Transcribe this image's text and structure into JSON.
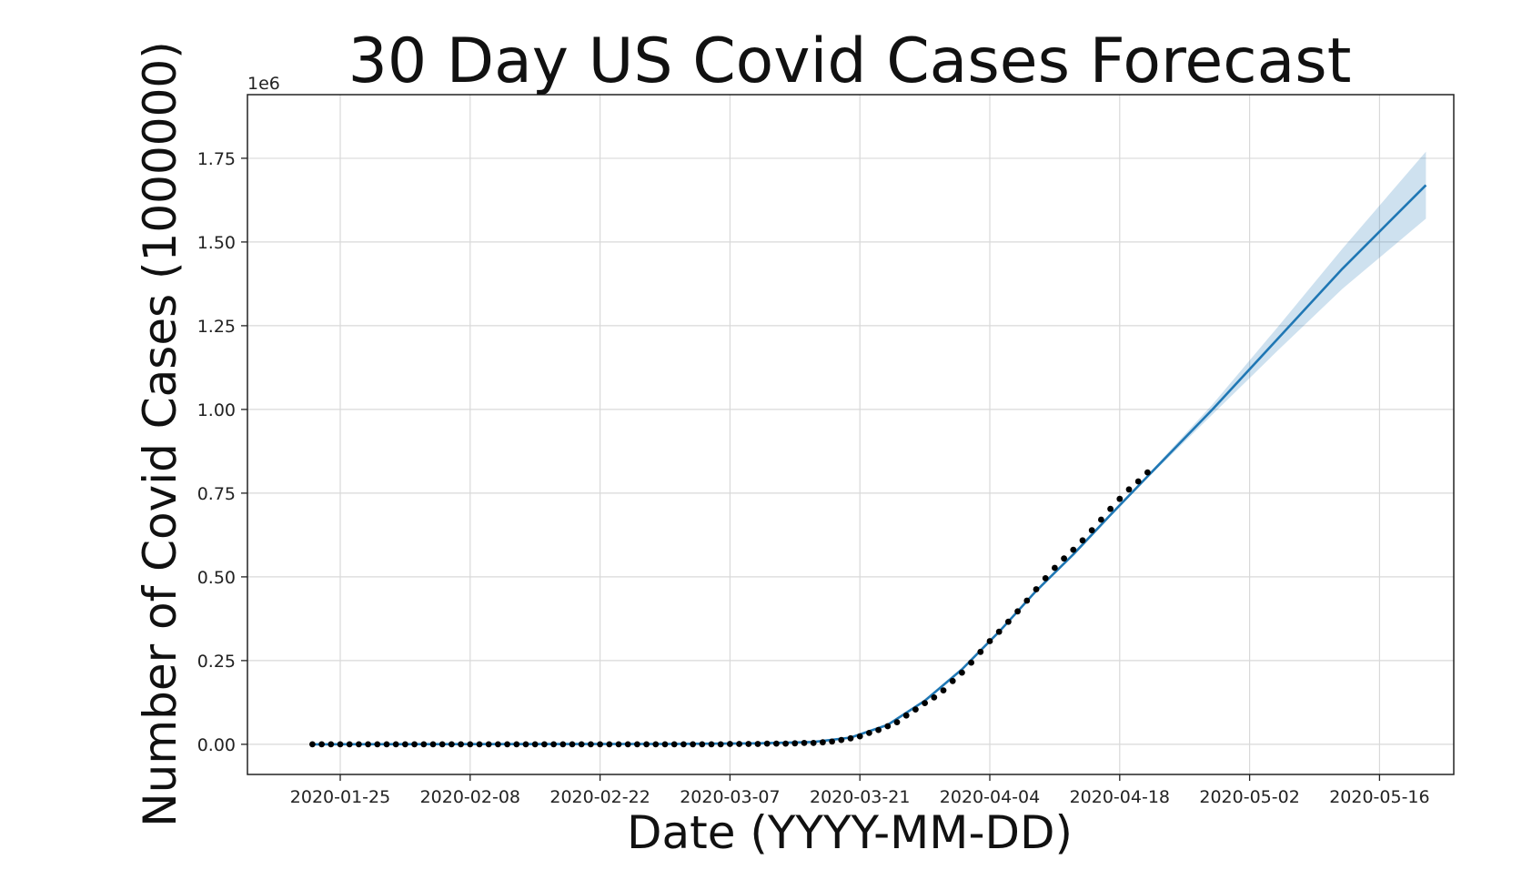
{
  "chart_data": {
    "type": "line",
    "title": "30 Day US Covid Cases Forecast",
    "xlabel": "Date (YYYY-MM-DD)",
    "ylabel": "Number of Covid Cases (1000000)",
    "y_offset_label": "1e6",
    "x_ticks": [
      "2020-01-25",
      "2020-02-08",
      "2020-02-22",
      "2020-03-07",
      "2020-03-21",
      "2020-04-04",
      "2020-04-18",
      "2020-05-02",
      "2020-05-16"
    ],
    "y_ticks": [
      "0.00",
      "0.25",
      "0.50",
      "0.75",
      "1.00",
      "1.25",
      "1.50",
      "1.75"
    ],
    "x_range": [
      "2020-01-15",
      "2020-05-24"
    ],
    "ylim": [
      -0.09,
      1.94
    ],
    "grid": true,
    "colors": {
      "forecast_line": "#1f77b4",
      "interval_band": "#1f77b4",
      "observed_points": "#000000"
    },
    "series": [
      {
        "kind": "observed_points",
        "x": [
          "2020-01-22",
          "2020-01-23",
          "2020-01-24",
          "2020-01-25",
          "2020-01-26",
          "2020-01-27",
          "2020-01-28",
          "2020-01-29",
          "2020-01-30",
          "2020-01-31",
          "2020-02-01",
          "2020-02-02",
          "2020-02-03",
          "2020-02-04",
          "2020-02-05",
          "2020-02-06",
          "2020-02-07",
          "2020-02-08",
          "2020-02-09",
          "2020-02-10",
          "2020-02-11",
          "2020-02-12",
          "2020-02-13",
          "2020-02-14",
          "2020-02-15",
          "2020-02-16",
          "2020-02-17",
          "2020-02-18",
          "2020-02-19",
          "2020-02-20",
          "2020-02-21",
          "2020-02-22",
          "2020-02-23",
          "2020-02-24",
          "2020-02-25",
          "2020-02-26",
          "2020-02-27",
          "2020-02-28",
          "2020-02-29",
          "2020-03-01",
          "2020-03-02",
          "2020-03-03",
          "2020-03-04",
          "2020-03-05",
          "2020-03-06",
          "2020-03-07",
          "2020-03-08",
          "2020-03-09",
          "2020-03-10",
          "2020-03-11",
          "2020-03-12",
          "2020-03-13",
          "2020-03-14",
          "2020-03-15",
          "2020-03-16",
          "2020-03-17",
          "2020-03-18",
          "2020-03-19",
          "2020-03-20",
          "2020-03-21",
          "2020-03-22",
          "2020-03-23",
          "2020-03-24",
          "2020-03-25",
          "2020-03-26",
          "2020-03-27",
          "2020-03-28",
          "2020-03-29",
          "2020-03-30",
          "2020-03-31",
          "2020-04-01",
          "2020-04-02",
          "2020-04-03",
          "2020-04-04",
          "2020-04-05",
          "2020-04-06",
          "2020-04-07",
          "2020-04-08",
          "2020-04-09",
          "2020-04-10",
          "2020-04-11",
          "2020-04-12",
          "2020-04-13",
          "2020-04-14",
          "2020-04-15",
          "2020-04-16",
          "2020-04-17",
          "2020-04-18",
          "2020-04-19",
          "2020-04-20",
          "2020-04-21"
        ],
        "y": [
          0,
          0,
          0,
          0,
          0,
          0,
          0,
          0,
          0,
          0,
          0,
          0,
          0,
          0,
          0,
          0,
          0,
          0,
          0,
          0,
          0,
          0,
          0,
          0,
          0,
          0,
          0,
          0,
          0,
          0,
          0,
          0,
          0,
          0,
          0,
          0,
          0,
          0,
          0,
          0,
          0,
          0,
          0,
          0,
          0,
          0.001,
          0.001,
          0.001,
          0.001,
          0.002,
          0.002,
          0.002,
          0.003,
          0.004,
          0.004,
          0.006,
          0.008,
          0.013,
          0.018,
          0.024,
          0.034,
          0.043,
          0.054,
          0.066,
          0.086,
          0.104,
          0.123,
          0.14,
          0.161,
          0.189,
          0.214,
          0.244,
          0.276,
          0.308,
          0.336,
          0.366,
          0.397,
          0.429,
          0.463,
          0.496,
          0.527,
          0.555,
          0.581,
          0.609,
          0.639,
          0.671,
          0.703,
          0.733,
          0.761,
          0.785,
          0.812
        ]
      },
      {
        "kind": "forecast_line",
        "x": [
          "2020-01-22",
          "2020-03-01",
          "2020-03-10",
          "2020-03-16",
          "2020-03-20",
          "2020-03-24",
          "2020-03-28",
          "2020-04-01",
          "2020-04-05",
          "2020-04-09",
          "2020-04-13",
          "2020-04-17",
          "2020-04-21",
          "2020-04-28",
          "2020-05-05",
          "2020-05-12",
          "2020-05-21"
        ],
        "y": [
          0,
          0.001,
          0.003,
          0.007,
          0.02,
          0.058,
          0.13,
          0.224,
          0.336,
          0.458,
          0.567,
          0.685,
          0.8,
          1.0,
          1.21,
          1.42,
          1.67
        ]
      },
      {
        "kind": "uncertainty_interval",
        "x": [
          "2020-04-21",
          "2020-04-28",
          "2020-05-05",
          "2020-05-12",
          "2020-05-21"
        ],
        "lower": [
          0.795,
          0.985,
          1.175,
          1.36,
          1.57
        ],
        "upper": [
          0.805,
          1.015,
          1.245,
          1.48,
          1.77
        ]
      }
    ]
  }
}
